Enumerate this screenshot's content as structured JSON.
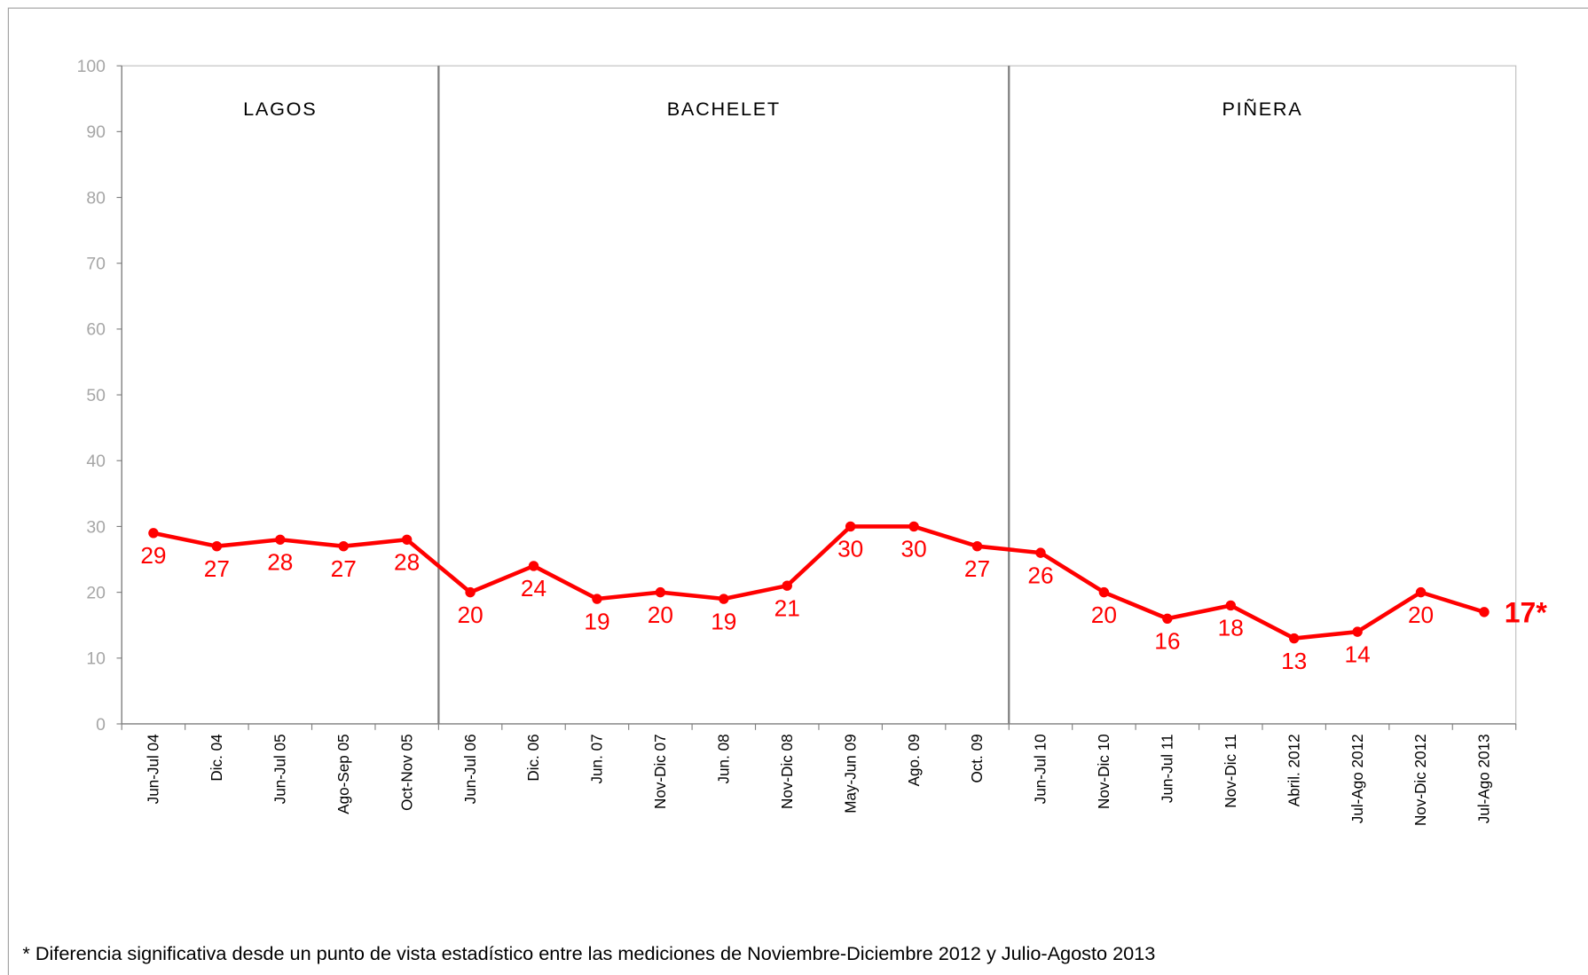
{
  "chart_data": {
    "type": "line",
    "categories": [
      "Jun-Jul 04",
      "Dic. 04",
      "Jun-Jul 05",
      "Ago-Sep 05",
      "Oct-Nov 05",
      "Jun-Jul 06",
      "Dic. 06",
      "Jun. 07",
      "Nov-Dic 07",
      "Jun. 08",
      "Nov-Dic 08",
      "May-Jun 09",
      "Ago. 09",
      "Oct. 09",
      "Jun-Jul 10",
      "Nov-Dic 10",
      "Jun-Jul 11",
      "Nov-Dic 11",
      "Abril. 2012",
      "Jul-Ago 2012",
      "Nov-Dic 2012",
      "Jul-Ago 2013"
    ],
    "values": [
      29,
      27,
      28,
      27,
      28,
      20,
      24,
      19,
      20,
      19,
      21,
      30,
      30,
      27,
      26,
      20,
      16,
      18,
      13,
      14,
      20,
      17
    ],
    "value_labels": [
      "29",
      "27",
      "28",
      "27",
      "28",
      "20",
      "24",
      "19",
      "20",
      "19",
      "21",
      "30",
      "30",
      "27",
      "26",
      "20",
      "16",
      "18",
      "13",
      "14",
      "20",
      "17*"
    ],
    "color": "#ff0000",
    "ylim": [
      0,
      100
    ],
    "yticks": [
      0,
      10,
      20,
      30,
      40,
      50,
      60,
      70,
      80,
      90,
      100
    ],
    "periods": [
      {
        "label": "LAGOS",
        "from": "Jun-Jul 04",
        "to": "Oct-Nov 05"
      },
      {
        "label": "BACHELET",
        "from": "Jun-Jul 06",
        "to": "Oct. 09"
      },
      {
        "label": "PIÑERA",
        "from": "Jun-Jul 10",
        "to": "Jul-Ago 2013"
      }
    ],
    "footnote": "* Diferencia significativa desde un punto de vista estadístico entre las mediciones de Noviembre-Diciembre 2012 y Julio-Agosto 2013"
  }
}
